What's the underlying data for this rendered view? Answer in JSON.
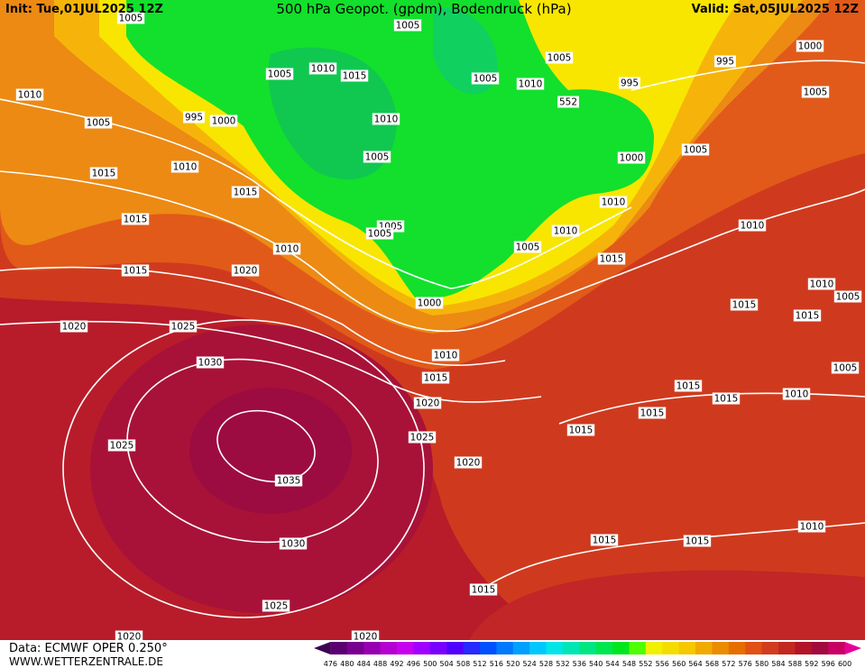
{
  "header": {
    "init": "Init: Tue,01JUL2025 12Z",
    "title": "500 hPa Geopot. (gpdm), Bodendruck (hPa)",
    "valid": "Valid: Sat,05JUL2025 12Z"
  },
  "isobar_labels": [
    "1005",
    "1005",
    "1010",
    "1015",
    "1005",
    "1005",
    "1010",
    "995",
    "1005",
    "995",
    "1000",
    "1005",
    "1010",
    "1005",
    "995",
    "1000",
    "1010",
    "1005",
    "1000",
    "1005",
    "1015",
    "1010",
    "1015",
    "552",
    "1010",
    "1005",
    "1005",
    "1010",
    "1005",
    "1015",
    "1010",
    "1010",
    "1015",
    "1015",
    "1020",
    "1010",
    "1005",
    "1015",
    "1000",
    "1015",
    "1020",
    "1025",
    "1030",
    "1010",
    "1015",
    "1005",
    "1015",
    "1015",
    "1010",
    "1020",
    "1015",
    "1015",
    "1025",
    "1025",
    "1020",
    "1035",
    "1010",
    "1030",
    "1015",
    "1015",
    "1015",
    "1025",
    "1020",
    "1020"
  ],
  "color_scale": [
    476,
    480,
    484,
    488,
    492,
    496,
    500,
    504,
    508,
    512,
    516,
    520,
    524,
    528,
    532,
    536,
    540,
    544,
    548,
    552,
    556,
    560,
    564,
    568,
    572,
    576,
    580,
    584,
    588,
    592,
    596,
    600
  ],
  "footer": {
    "source": "Data: ECMWF OPER 0.250°",
    "site": "WWW.WETTERZENTRALE.DE"
  }
}
